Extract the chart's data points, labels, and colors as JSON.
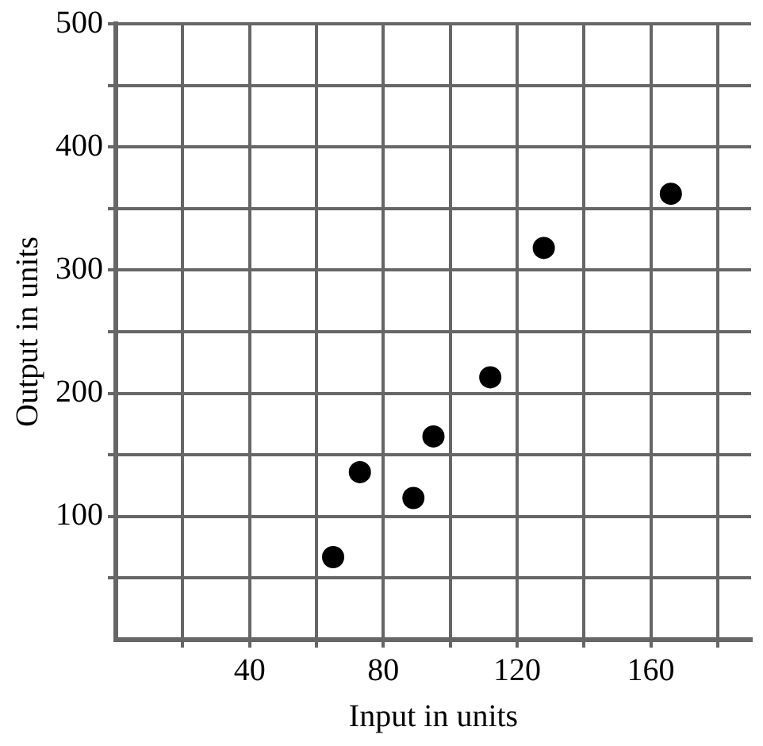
{
  "chart_data": {
    "type": "scatter",
    "xlabel": "Input in units",
    "ylabel": "Output in units",
    "x": [
      65,
      73,
      89,
      95,
      112,
      128,
      166
    ],
    "values": [
      67,
      136,
      115,
      165,
      213,
      318,
      362
    ],
    "color": "#000000",
    "marker": "circle",
    "xlim": [
      0,
      190
    ],
    "ylim": [
      0,
      500
    ],
    "xticks": [
      {
        "value": 20,
        "label": null
      },
      40,
      {
        "value": 60,
        "label": null
      },
      80,
      {
        "value": 100,
        "label": null
      },
      120,
      {
        "value": 140,
        "label": null
      },
      160,
      {
        "value": 180,
        "label": null
      }
    ],
    "yticks": [
      {
        "value": 50,
        "label": null
      },
      100,
      {
        "value": 150,
        "label": null
      },
      200,
      {
        "value": 250,
        "label": null
      },
      300,
      {
        "value": 350,
        "label": null
      },
      400,
      {
        "value": 450,
        "label": null
      },
      500
    ],
    "grid": true
  }
}
